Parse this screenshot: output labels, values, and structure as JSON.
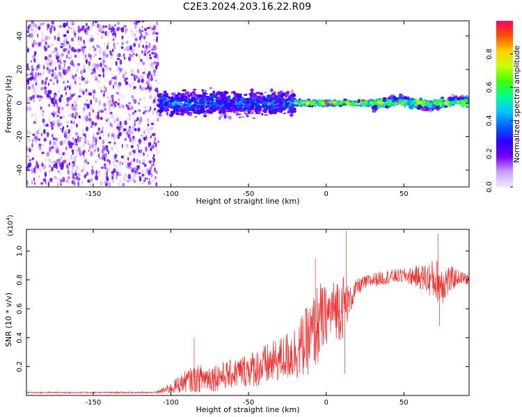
{
  "title": "C2E3.2024.203.16.22.R09",
  "chart_data": [
    {
      "type": "heatmap",
      "xlabel": "Height of straight line (km)",
      "ylabel": "Frequency (Hz)",
      "xlim": [
        -193,
        92
      ],
      "ylim": [
        -50,
        49
      ],
      "xticks": [
        -150,
        -100,
        -50,
        0,
        50
      ],
      "yticks": [
        -40,
        -20,
        0,
        20,
        40
      ],
      "colorbar": {
        "label": "Normalized spectral amplitude",
        "range": [
          0,
          1
        ],
        "ticks": [
          0.0,
          0.2,
          0.4,
          0.6,
          0.8
        ],
        "colors": [
          "#f2e8ff",
          "#c9a0ff",
          "#7a00ff",
          "#2a00ff",
          "#0060ff",
          "#00c8ff",
          "#00ff90",
          "#40ff00",
          "#c8ff00",
          "#ffd000",
          "#ff5000",
          "#ff0060"
        ]
      },
      "regions": [
        {
          "x_from": -193,
          "x_to": -108,
          "description_value": "broadband noise",
          "amplitude": [
            0.0,
            0.25
          ],
          "freq_spread": 49
        },
        {
          "x_from": -108,
          "x_to": -20,
          "amplitude": [
            0.2,
            0.5
          ],
          "freq_spread": 10
        },
        {
          "x_from": -20,
          "x_to": 30,
          "amplitude": [
            0.5,
            1.0
          ],
          "freq_spread": 2
        },
        {
          "x_from": 30,
          "x_to": 92,
          "amplitude": [
            0.4,
            0.9
          ],
          "freq_spread": 4
        }
      ]
    },
    {
      "type": "line",
      "xlabel": "Height of straight line (km)",
      "ylabel": "SNR (10 * v/v)",
      "yscale_label": "(x10",
      "yscale_exp": "4",
      "yscale_close": ")",
      "xlim": [
        -193,
        92
      ],
      "ylim": [
        0,
        1.15
      ],
      "xticks": [
        -150,
        -100,
        -50,
        0,
        50
      ],
      "yticks": [
        0.2,
        0.4,
        0.6,
        0.8,
        1.0
      ],
      "series_color": "#f03030",
      "envelope": {
        "x": [
          -193,
          -150,
          -110,
          -100,
          -90,
          -80,
          -70,
          -60,
          -50,
          -40,
          -30,
          -20,
          -10,
          -5,
          0,
          5,
          10,
          15,
          20,
          25,
          30,
          40,
          50,
          60,
          70,
          75,
          80,
          85,
          92
        ],
        "y": [
          0.02,
          0.02,
          0.02,
          0.05,
          0.1,
          0.12,
          0.13,
          0.15,
          0.18,
          0.2,
          0.25,
          0.3,
          0.4,
          0.5,
          0.55,
          0.6,
          0.62,
          0.65,
          0.75,
          0.78,
          0.8,
          0.82,
          0.83,
          0.82,
          0.8,
          0.78,
          0.8,
          0.82,
          0.8
        ],
        "spread": [
          0.005,
          0.005,
          0.005,
          0.04,
          0.08,
          0.1,
          0.1,
          0.1,
          0.12,
          0.15,
          0.15,
          0.2,
          0.25,
          0.3,
          0.2,
          0.2,
          0.25,
          0.1,
          0.06,
          0.05,
          0.05,
          0.05,
          0.05,
          0.08,
          0.15,
          0.15,
          0.1,
          0.05,
          0.04
        ]
      },
      "peaks": [
        {
          "x": -85,
          "y": 0.4
        },
        {
          "x": -7,
          "y": 0.95
        },
        {
          "x": 13,
          "y": 1.14
        },
        {
          "x": 12,
          "y": 0.15
        },
        {
          "x": 72,
          "y": 1.12
        },
        {
          "x": 73,
          "y": 0.48
        }
      ]
    }
  ]
}
